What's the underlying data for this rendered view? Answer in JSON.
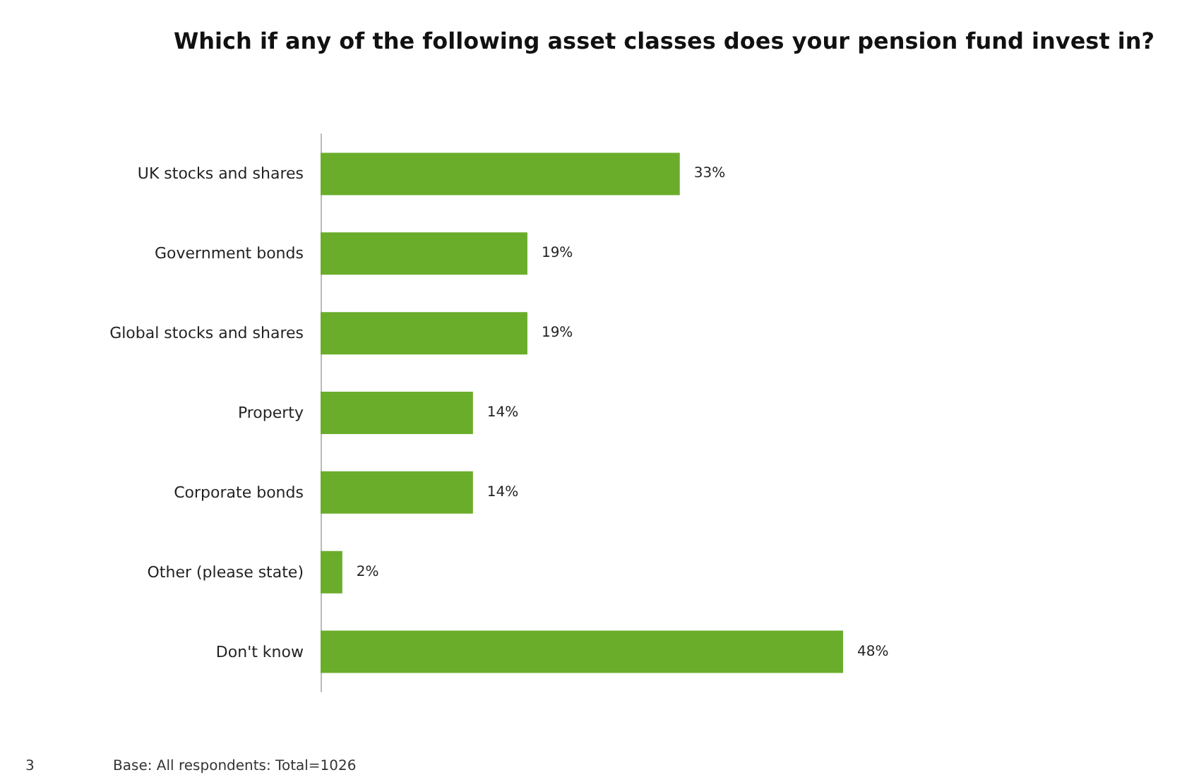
{
  "chart_data": {
    "type": "bar",
    "orientation": "horizontal",
    "title": "Which if any of the following asset classes does your pension fund invest in?",
    "categories": [
      "UK stocks and shares",
      "Government bonds",
      "Global stocks and shares",
      "Property",
      "Corporate bonds",
      "Other (please state)",
      "Don't know"
    ],
    "values": [
      33,
      19,
      19,
      14,
      14,
      2,
      48
    ],
    "value_labels": [
      "33%",
      "19%",
      "19%",
      "14%",
      "14%",
      "2%",
      "48%"
    ],
    "color": "#6aad2b",
    "annotations": [
      "3",
      "Base: All respondents: Total=1026"
    ]
  }
}
